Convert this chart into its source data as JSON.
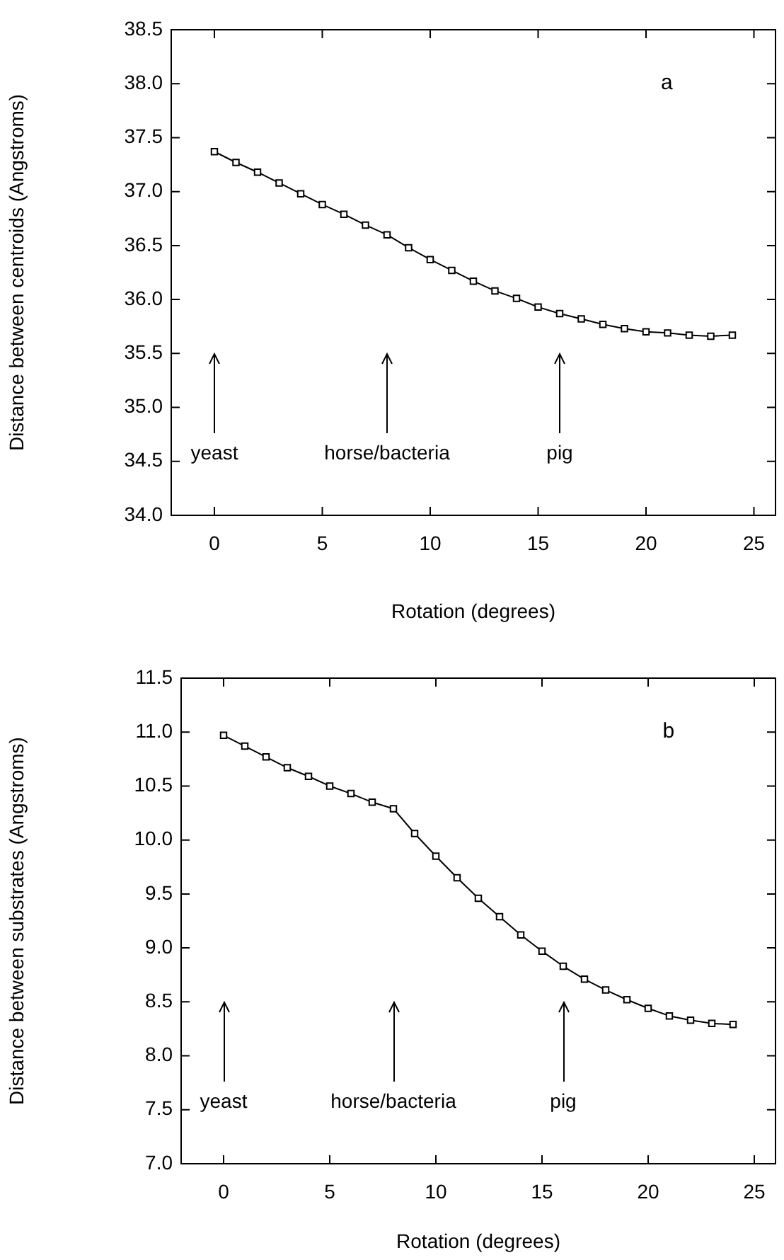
{
  "chart_data": [
    {
      "type": "line",
      "xlabel": "Rotation (degrees)",
      "ylabel": "Distance between centroids (Angstroms)",
      "x": [
        0,
        1,
        2,
        3,
        4,
        5,
        6,
        7,
        8,
        9,
        10,
        11,
        12,
        13,
        14,
        15,
        16,
        17,
        18,
        19,
        20,
        21,
        22,
        23,
        24
      ],
      "values": [
        37.37,
        37.27,
        37.18,
        37.08,
        36.98,
        36.88,
        36.79,
        36.69,
        36.6,
        36.48,
        36.37,
        36.27,
        36.17,
        36.08,
        36.01,
        35.93,
        35.87,
        35.82,
        35.77,
        35.73,
        35.7,
        35.69,
        35.67,
        35.66,
        35.67
      ],
      "color": "#000000",
      "marker": "square",
      "line_style": "solid",
      "grid": false,
      "legend": false,
      "xlim": [
        -2,
        26
      ],
      "xticks": [
        0,
        5,
        10,
        15,
        20,
        25
      ],
      "ylim": [
        34.0,
        38.5
      ],
      "yticks": [
        {
          "value": 34,
          "label": "34.0"
        },
        {
          "value": 34.5,
          "label": "34.5"
        },
        {
          "value": 35,
          "label": "35.0"
        },
        {
          "value": 35.5,
          "label": "35.5"
        },
        {
          "value": 36,
          "label": "36.0"
        },
        {
          "value": 36.5,
          "label": "36.5"
        },
        {
          "value": 37,
          "label": "37.0"
        },
        {
          "value": 37.5,
          "label": "37.5"
        },
        {
          "value": 38,
          "label": "38.0"
        },
        {
          "value": 38.5,
          "label": "38.5"
        }
      ],
      "annotations": [
        "a"
      ],
      "ref_lines": [
        {
          "axis": "x",
          "value": 0,
          "label": "yeast"
        },
        {
          "axis": "x",
          "value": 8,
          "label": "horse/bacteria"
        },
        {
          "axis": "x",
          "value": 16,
          "label": "pig"
        }
      ]
    },
    {
      "type": "line",
      "xlabel": "Rotation (degrees)",
      "ylabel": "Distance between substrates (Angstroms)",
      "x": [
        0,
        1,
        2,
        3,
        4,
        5,
        6,
        7,
        8,
        9,
        10,
        11,
        12,
        13,
        14,
        15,
        16,
        17,
        18,
        19,
        20,
        21,
        22,
        23,
        24
      ],
      "values": [
        10.97,
        10.87,
        10.77,
        10.67,
        10.59,
        10.5,
        10.43,
        10.35,
        10.29,
        10.06,
        9.85,
        9.65,
        9.46,
        9.29,
        9.12,
        8.97,
        8.83,
        8.71,
        8.61,
        8.52,
        8.44,
        8.37,
        8.33,
        8.3,
        8.29
      ],
      "color": "#000000",
      "marker": "square",
      "line_style": "solid",
      "grid": false,
      "legend": false,
      "xlim": [
        -2,
        26
      ],
      "xticks": [
        0,
        5,
        10,
        15,
        20,
        25
      ],
      "ylim": [
        7.0,
        11.5
      ],
      "yticks": [
        {
          "value": 7,
          "label": "7.0"
        },
        {
          "value": 7.5,
          "label": "7.5"
        },
        {
          "value": 8,
          "label": "8.0"
        },
        {
          "value": 8.5,
          "label": "8.5"
        },
        {
          "value": 9,
          "label": "9.0"
        },
        {
          "value": 9.5,
          "label": "9.5"
        },
        {
          "value": 10,
          "label": "10.0"
        },
        {
          "value": 10.5,
          "label": "10.5"
        },
        {
          "value": 11,
          "label": "11.0"
        },
        {
          "value": 11.5,
          "label": "11.5"
        }
      ],
      "annotations": [
        "b"
      ],
      "ref_lines": [
        {
          "axis": "x",
          "value": 0,
          "label": "yeast"
        },
        {
          "axis": "x",
          "value": 8,
          "label": "horse/bacteria"
        },
        {
          "axis": "x",
          "value": 16,
          "label": "pig"
        }
      ]
    }
  ]
}
